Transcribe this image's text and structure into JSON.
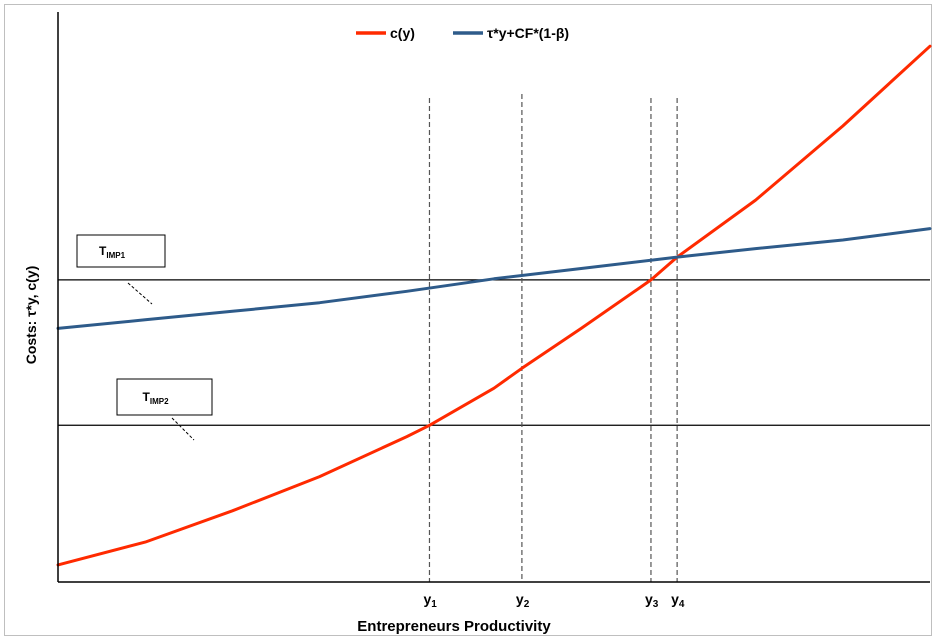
{
  "chart_data": {
    "type": "line",
    "title": "",
    "xlabel": "Entrepreneurs Productivity",
    "ylabel": "Costs: τ*y, c(y)",
    "xlim": [
      0,
      100
    ],
    "ylim": [
      0,
      100
    ],
    "axes_ticks": false,
    "grid": false,
    "legend": {
      "placement": "top-center",
      "entries": [
        {
          "name": "c(y)",
          "color": "#ff2a00"
        },
        {
          "name": "τ*y+CF*(1-β)",
          "color": "#2e5b8a"
        }
      ]
    },
    "series": [
      {
        "name": "c(y)",
        "color": "#ff2a00",
        "x": [
          0,
          10,
          20,
          30,
          40,
          42.6,
          50,
          53.2,
          60,
          68,
          71,
          80,
          90,
          100
        ],
        "y": [
          3,
          7,
          12.5,
          18.5,
          25.5,
          27.5,
          34,
          37.5,
          44.5,
          53,
          57,
          67,
          80,
          94
        ]
      },
      {
        "name": "τ*y+CF*(1-β)",
        "color": "#2e5b8a",
        "x": [
          0,
          10,
          20,
          30,
          40,
          50,
          60,
          71,
          80,
          90,
          100
        ],
        "y": [
          44.5,
          46,
          47.5,
          49,
          51,
          53.2,
          55,
          57,
          58.5,
          60,
          62
        ]
      }
    ],
    "reference_lines": [
      {
        "label": "T",
        "subscript": "IMP1",
        "y": 53
      },
      {
        "label": "T",
        "subscript": "IMP2",
        "y": 27.5
      }
    ],
    "vertical_markers": [
      {
        "label": "y",
        "subscript": "1",
        "x": 42.6
      },
      {
        "label": "y",
        "subscript": "2",
        "x": 53.2
      },
      {
        "label": "y",
        "subscript": "3",
        "x": 68
      },
      {
        "label": "y",
        "subscript": "4",
        "x": 71
      }
    ]
  }
}
